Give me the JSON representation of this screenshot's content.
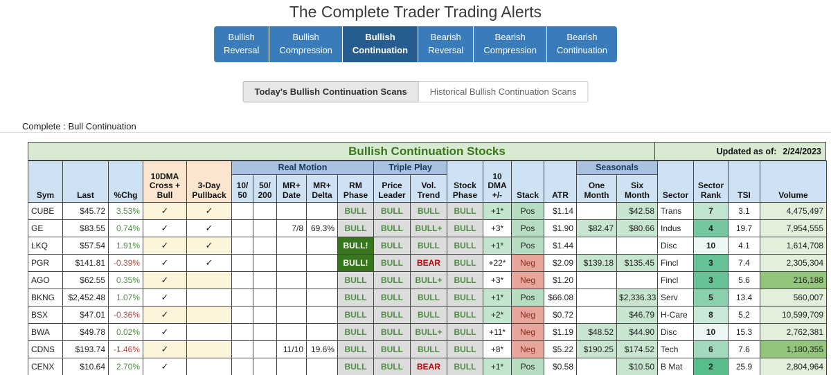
{
  "page": {
    "title": "The Complete Trader Trading Alerts"
  },
  "tabs": [
    {
      "label": "Bullish Reversal",
      "active": false
    },
    {
      "label": "Bullish Compression",
      "active": false
    },
    {
      "label": "Bullish Continuation",
      "active": true
    },
    {
      "label": "Bearish Reversal",
      "active": false
    },
    {
      "label": "Bearish Compression",
      "active": false
    },
    {
      "label": "Bearish Continuation",
      "active": false
    }
  ],
  "subtabs": {
    "today": "Today's Bullish Continuation Scans",
    "historical": "Historical Bullish Continuation Scans"
  },
  "section_label": "Complete : Bull Continuation",
  "table": {
    "title": "Bullish Continuation Stocks",
    "updated_label": "Updated as of:",
    "updated_date": "2/24/2023",
    "check_glyph": "✓",
    "groups": {
      "real_motion": "Real Motion",
      "triple_play": "Triple Play",
      "seasonals": "Seasonals"
    },
    "columns": {
      "sym": "Sym",
      "last": "Last",
      "chg": "%Chg",
      "dma_cross": "10DMA Cross + Bull",
      "pullback": "3-Day Pullback",
      "m1050": "10/ 50",
      "m50200": "50/ 200",
      "mr_date": "MR+ Date",
      "mr_delta": "MR+ Delta",
      "rm_phase": "RM Phase",
      "price_leader": "Price Leader",
      "vol_trend": "Vol. Trend",
      "stock_phase": "Stock Phase",
      "dma": "10 DMA +/-",
      "stack": "Stack",
      "atr": "ATR",
      "one_month": "One Month",
      "six_month": "Six Month",
      "sector": "Sector",
      "rank": "Sector Rank",
      "tsi": "TSI",
      "volume": "Volume"
    },
    "rows": [
      {
        "sym": "CUBE",
        "last": "$45.72",
        "chg": "3.53%",
        "c1": true,
        "c2": true,
        "stripe": true,
        "m1050": "",
        "m50200": "",
        "mr_date": "",
        "mr_delta": "",
        "rm_phase": "BULL",
        "price_leader": "BULL",
        "vol_trend": "BULL",
        "stock_phase": "BULL",
        "dma": "+1*",
        "dma_hl": true,
        "stack": "Pos",
        "atr": "$1.14",
        "one_m": "",
        "six_m": "$42.58",
        "sector": "Trans",
        "rank": "7",
        "tsi": "3.1",
        "volume": "4,475,497",
        "vol_hl": false
      },
      {
        "sym": "GE",
        "last": "$83.55",
        "chg": "0.74%",
        "c1": true,
        "c2": true,
        "stripe": false,
        "m1050": "",
        "m50200": "",
        "mr_date": "7/8",
        "mr_delta": "69.3%",
        "rm_phase": "BULL",
        "price_leader": "BULL",
        "vol_trend": "BULL+",
        "stock_phase": "BULL",
        "dma": "+3*",
        "dma_hl": false,
        "stack": "Pos",
        "atr": "$1.90",
        "one_m": "$82.47",
        "six_m": "$80.66",
        "sector": "Indus",
        "rank": "4",
        "tsi": "19.7",
        "volume": "7,954,555",
        "vol_hl": false
      },
      {
        "sym": "LKQ",
        "last": "$57.54",
        "chg": "1.91%",
        "c1": true,
        "c2": true,
        "stripe": true,
        "m1050": "",
        "m50200": "",
        "mr_date": "",
        "mr_delta": "",
        "rm_phase": "BULL!",
        "price_leader": "BULL",
        "vol_trend": "BULL",
        "stock_phase": "BULL",
        "dma": "+1*",
        "dma_hl": true,
        "stack": "Pos",
        "atr": "$1.44",
        "one_m": "",
        "six_m": "",
        "sector": "Disc",
        "rank": "10",
        "tsi": "4.1",
        "volume": "1,614,708",
        "vol_hl": false
      },
      {
        "sym": "PGR",
        "last": "$141.81",
        "chg": "-0.39%",
        "c1": true,
        "c2": true,
        "stripe": false,
        "m1050": "",
        "m50200": "",
        "mr_date": "",
        "mr_delta": "",
        "rm_phase": "BULL!",
        "price_leader": "BULL",
        "vol_trend": "BEAR",
        "stock_phase": "BULL",
        "dma": "+22*",
        "dma_hl": false,
        "stack": "Neg",
        "atr": "$2.09",
        "one_m": "$139.18",
        "six_m": "$135.45",
        "sector": "Fincl",
        "rank": "3",
        "tsi": "7.4",
        "volume": "2,305,304",
        "vol_hl": false
      },
      {
        "sym": "AGO",
        "last": "$62.55",
        "chg": "0.35%",
        "c1": true,
        "c2": false,
        "stripe": true,
        "m1050": "",
        "m50200": "",
        "mr_date": "",
        "mr_delta": "",
        "rm_phase": "BULL",
        "price_leader": "BULL",
        "vol_trend": "BULL+",
        "stock_phase": "BULL",
        "dma": "+3*",
        "dma_hl": false,
        "stack": "Neg",
        "atr": "$1.20",
        "one_m": "",
        "six_m": "",
        "sector": "Fincl",
        "rank": "3",
        "tsi": "5.6",
        "volume": "216,188",
        "vol_hl": true
      },
      {
        "sym": "BKNG",
        "last": "$2,452.48",
        "chg": "1.07%",
        "c1": true,
        "c2": false,
        "stripe": false,
        "m1050": "",
        "m50200": "",
        "mr_date": "",
        "mr_delta": "",
        "rm_phase": "BULL",
        "price_leader": "BULL",
        "vol_trend": "BULL",
        "stock_phase": "BULL",
        "dma": "+1*",
        "dma_hl": true,
        "stack": "Pos",
        "atr": "$66.08",
        "one_m": "",
        "six_m": "$2,336.33",
        "sector": "Serv",
        "rank": "5",
        "tsi": "13.4",
        "volume": "560,007",
        "vol_hl": false
      },
      {
        "sym": "BSX",
        "last": "$47.01",
        "chg": "-0.36%",
        "c1": true,
        "c2": false,
        "stripe": true,
        "m1050": "",
        "m50200": "",
        "mr_date": "",
        "mr_delta": "",
        "rm_phase": "BULL",
        "price_leader": "BULL",
        "vol_trend": "BULL",
        "stock_phase": "BULL",
        "dma": "+2*",
        "dma_hl": true,
        "stack": "Neg",
        "atr": "$0.72",
        "one_m": "",
        "six_m": "$46.79",
        "sector": "H-Care",
        "rank": "8",
        "tsi": "5.2",
        "volume": "10,599,709",
        "vol_hl": false
      },
      {
        "sym": "BWA",
        "last": "$49.78",
        "chg": "0.02%",
        "c1": true,
        "c2": false,
        "stripe": false,
        "m1050": "",
        "m50200": "",
        "mr_date": "",
        "mr_delta": "",
        "rm_phase": "BULL",
        "price_leader": "BULL",
        "vol_trend": "BULL+",
        "stock_phase": "BULL",
        "dma": "+11*",
        "dma_hl": false,
        "stack": "Neg",
        "atr": "$1.19",
        "one_m": "$48.52",
        "six_m": "$44.90",
        "sector": "Disc",
        "rank": "10",
        "tsi": "15.3",
        "volume": "2,762,381",
        "vol_hl": false
      },
      {
        "sym": "CDNS",
        "last": "$193.74",
        "chg": "-1.46%",
        "c1": true,
        "c2": false,
        "stripe": true,
        "m1050": "",
        "m50200": "",
        "mr_date": "11/10",
        "mr_delta": "19.6%",
        "rm_phase": "BULL",
        "price_leader": "BULL",
        "vol_trend": "BULL",
        "stock_phase": "BULL",
        "dma": "+8*",
        "dma_hl": false,
        "stack": "Neg",
        "atr": "$5.22",
        "one_m": "$190.25",
        "six_m": "$174.52",
        "sector": "Tech",
        "rank": "6",
        "tsi": "7.6",
        "volume": "1,180,355",
        "vol_hl": true
      },
      {
        "sym": "CENX",
        "last": "$10.64",
        "chg": "2.70%",
        "c1": true,
        "c2": false,
        "stripe": false,
        "m1050": "",
        "m50200": "",
        "mr_date": "",
        "mr_delta": "",
        "rm_phase": "BULL",
        "price_leader": "BULL",
        "vol_trend": "BEAR",
        "stock_phase": "BULL",
        "dma": "+1*",
        "dma_hl": true,
        "stack": "Pos",
        "atr": "$0.58",
        "one_m": "",
        "six_m": "$10.50",
        "sector": "B Mat",
        "rank": "2",
        "tsi": "25.9",
        "volume": "2,804,964",
        "vol_hl": false
      }
    ]
  },
  "colors": {
    "tab_blue": "#3a7cba",
    "tab_active_blue": "#265d8e",
    "table_title_bg": "#d9ead3",
    "table_title_text": "#38761d",
    "header_blue": "#cfe2f3",
    "group_header_blue": "#a9c2e0",
    "group_header_text": "#17375e",
    "peach_header": "#fbe5ce",
    "check_stripe": "#fdf4dc",
    "phase_gray": "#dcdcdc",
    "bull_green": "#4e8d42",
    "bull_strong_bg": "#38761d",
    "bear_red": "#c00000",
    "pos_bg": "#b6ddc2",
    "neg_bg": "#e7a59c",
    "neg_text": "#8b2e20",
    "dma_highlight": "#c4e5cd",
    "seasonal_fill": "#c8e6cf",
    "volume_bg": "#e2efdb",
    "volume_highlight": "#94c57c",
    "chg_up": "#4e8d42",
    "chg_down": "#b04a42",
    "rank_colors": {
      "2": "#58bc8b",
      "3": "#67c295",
      "4": "#75c79f",
      "5": "#8bd0ac",
      "6": "#a3dabd",
      "7": "#c0e4d0",
      "8": "#cbe9d8",
      "10": "#edf7f2"
    }
  }
}
